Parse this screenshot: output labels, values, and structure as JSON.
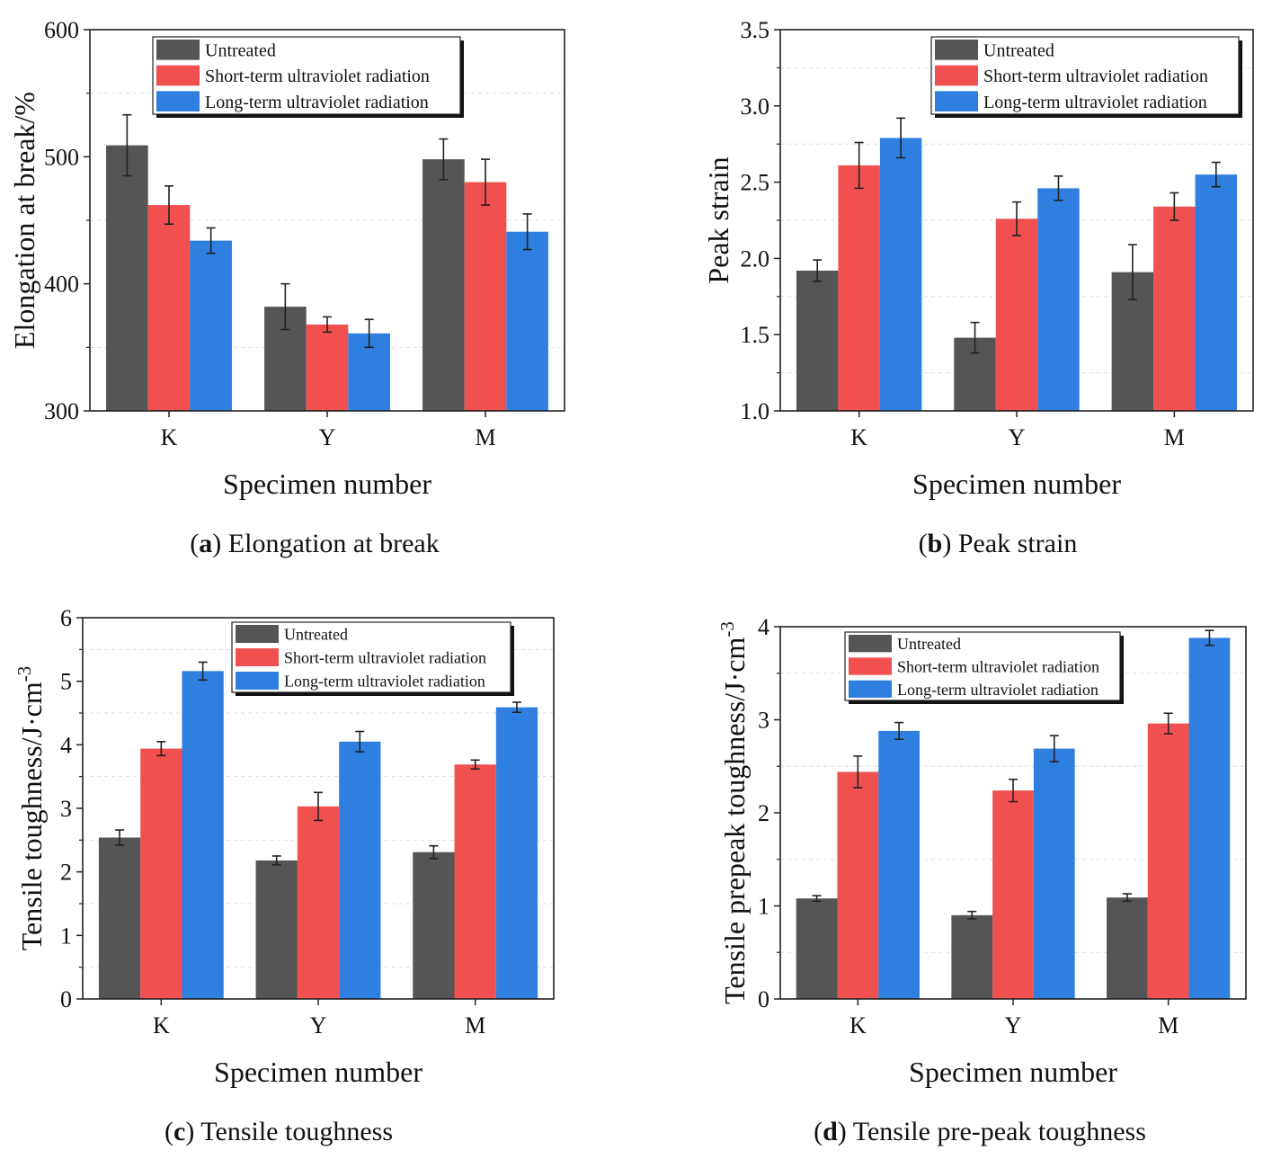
{
  "colors": {
    "untreated": "#555555",
    "short": "#f05050",
    "long": "#2f7fe0"
  },
  "panels": [
    {
      "id": "a",
      "caption_letter": "a",
      "caption_text": "Elongation at break"
    },
    {
      "id": "b",
      "caption_letter": "b",
      "caption_text": "Peak strain"
    },
    {
      "id": "c",
      "caption_letter": "c",
      "caption_text": "Tensile toughness"
    },
    {
      "id": "d",
      "caption_letter": "d",
      "caption_text": "Tensile pre-peak toughness"
    }
  ],
  "chart_data": [
    {
      "type": "bar",
      "categories": [
        "K",
        "Y",
        "M"
      ],
      "series": [
        {
          "name": "Untreated",
          "values": [
            509,
            382,
            498
          ],
          "errors": [
            24,
            18,
            16
          ]
        },
        {
          "name": "Short-term ultraviolet radiation",
          "values": [
            462,
            368,
            480
          ],
          "errors": [
            15,
            6,
            18
          ]
        },
        {
          "name": "Long-term ultraviolet radiation",
          "values": [
            434,
            361,
            441
          ],
          "errors": [
            10,
            11,
            14
          ]
        }
      ],
      "xlabel": "Specimen number",
      "ylabel": "Elongation at break/%",
      "ylabel_sup": "",
      "ylim": [
        300,
        600
      ],
      "yticks": [
        "300",
        "400",
        "500",
        "600"
      ],
      "legend": "top-center"
    },
    {
      "type": "bar",
      "categories": [
        "K",
        "Y",
        "M"
      ],
      "series": [
        {
          "name": "Untreated",
          "values": [
            1.92,
            1.48,
            1.91
          ],
          "errors": [
            0.07,
            0.1,
            0.18
          ]
        },
        {
          "name": "Short-term ultraviolet radiation",
          "values": [
            2.61,
            2.26,
            2.34
          ],
          "errors": [
            0.15,
            0.11,
            0.09
          ]
        },
        {
          "name": "Long-term ultraviolet radiation",
          "values": [
            2.79,
            2.46,
            2.55
          ],
          "errors": [
            0.13,
            0.08,
            0.08
          ]
        }
      ],
      "xlabel": "Specimen number",
      "ylabel": "Peak strain",
      "ylabel_sup": "",
      "ylim": [
        1.0,
        3.5
      ],
      "yticks": [
        "1.0",
        "1.5",
        "2.0",
        "2.5",
        "3.0",
        "3.5"
      ],
      "legend": "top-right"
    },
    {
      "type": "bar",
      "categories": [
        "K",
        "Y",
        "M"
      ],
      "series": [
        {
          "name": "Untreated",
          "values": [
            2.54,
            2.18,
            2.31
          ],
          "errors": [
            0.12,
            0.07,
            0.1
          ]
        },
        {
          "name": "Short-term ultraviolet radiation",
          "values": [
            3.94,
            3.03,
            3.69
          ],
          "errors": [
            0.11,
            0.22,
            0.07
          ]
        },
        {
          "name": "Long-term ultraviolet radiation",
          "values": [
            5.16,
            4.05,
            4.59
          ],
          "errors": [
            0.14,
            0.16,
            0.08
          ]
        }
      ],
      "xlabel": "Specimen number",
      "ylabel": "Tensile toughness/J·cm",
      "ylabel_sup": "-3",
      "ylim": [
        0,
        6
      ],
      "yticks": [
        "0",
        "1",
        "2",
        "3",
        "4",
        "5",
        "6"
      ],
      "legend": "top-right"
    },
    {
      "type": "bar",
      "categories": [
        "K",
        "Y",
        "M"
      ],
      "series": [
        {
          "name": "Untreated",
          "values": [
            1.08,
            0.9,
            1.09
          ],
          "errors": [
            0.03,
            0.04,
            0.04
          ]
        },
        {
          "name": "Short-term ultraviolet radiation",
          "values": [
            2.44,
            2.24,
            2.96
          ],
          "errors": [
            0.17,
            0.12,
            0.11
          ]
        },
        {
          "name": "Long-term ultraviolet radiation",
          "values": [
            2.88,
            2.69,
            3.88
          ],
          "errors": [
            0.09,
            0.14,
            0.08
          ]
        }
      ],
      "xlabel": "Specimen number",
      "ylabel": "Tensile prepeak toughness/J·cm",
      "ylabel_sup": "-3",
      "ylim": [
        0,
        4
      ],
      "yticks": [
        "0",
        "1",
        "2",
        "3",
        "4"
      ],
      "legend": "top-center"
    }
  ]
}
